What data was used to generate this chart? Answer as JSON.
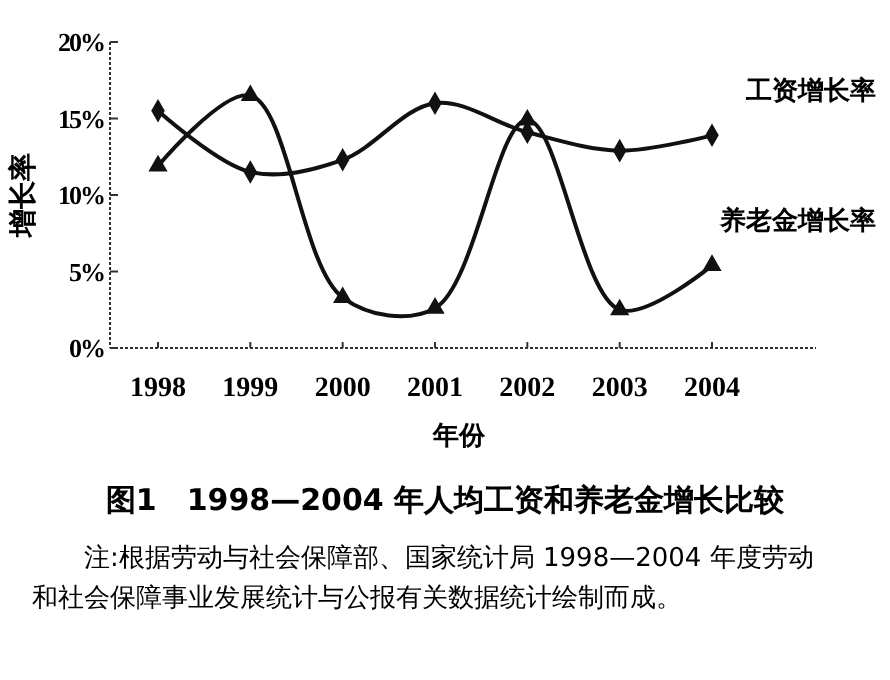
{
  "chart_data": {
    "type": "line",
    "title": "图1　1998—2004 年人均工资和养老金增长比较",
    "xlabel": "年份",
    "ylabel": "增长率",
    "categories": [
      "1998",
      "1999",
      "2000",
      "2001",
      "2002",
      "2003",
      "2004"
    ],
    "series": [
      {
        "name": "工资增长率",
        "color": "#111111",
        "marker": "diamond",
        "values": [
          15.5,
          11.5,
          12.3,
          16.0,
          14.1,
          12.9,
          13.9
        ]
      },
      {
        "name": "养老金增长率",
        "color": "#111111",
        "marker": "triangle",
        "values": [
          11.9,
          16.5,
          3.3,
          2.6,
          14.9,
          2.5,
          5.4
        ]
      }
    ],
    "ylim": [
      0,
      20
    ],
    "yticks": [
      {
        "value": 0,
        "label": "0%"
      },
      {
        "value": 5,
        "label": "5%"
      },
      {
        "value": 10,
        "label": "10%"
      },
      {
        "value": 15,
        "label": "15%"
      },
      {
        "value": 20,
        "label": "20%"
      }
    ],
    "grid": false,
    "line_style": "solid",
    "annotations": [
      "注:根据劳动与社会保障部、国家统计局 1998—2004 年度劳动和社会保障事业发展统计与公报有关数据统计绘制而成。"
    ]
  }
}
